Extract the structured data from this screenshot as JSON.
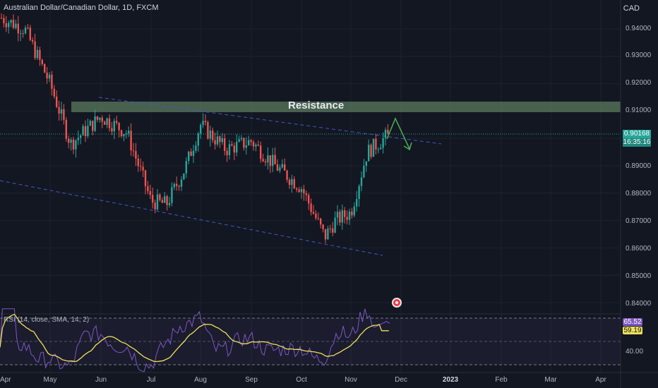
{
  "header": {
    "symbol_title": "Australian Dollar/Canadian Dollar, 1D, FXCM",
    "currency": "CAD"
  },
  "price_axis": {
    "ticks": [
      "0.94000",
      "0.93000",
      "0.92000",
      "0.91000",
      "0.89000",
      "0.88000",
      "0.87000",
      "0.86000",
      "0.85000",
      "0.84000"
    ]
  },
  "price_tag": {
    "price": "0.90168",
    "countdown": "16:35:16"
  },
  "rsi": {
    "title": "RSI (14, close, SMA, 14, 2)",
    "value": "65.52",
    "sma_value": "59.19",
    "tick": "40.00"
  },
  "time_axis": {
    "labels": [
      "Apr",
      "May",
      "Jun",
      "Jul",
      "Aug",
      "Sep",
      "Oct",
      "Nov",
      "Dec",
      "2023",
      "Feb",
      "Mar",
      "Apr"
    ]
  },
  "annotations": {
    "resistance_label": "Resistance"
  },
  "colors": {
    "background": "#131722",
    "up": "#26a69a",
    "down": "#ef5350",
    "resistance_zone": "#5b7a5e",
    "trendline": "#4357c8",
    "arrow": "#4caf50",
    "rsi_line": "#7e57c2",
    "rsi_sma": "#f0e05a",
    "price_tag": "#26a69a"
  },
  "chart_data": {
    "type": "candlestick",
    "title": "Australian Dollar/Canadian Dollar, 1D, FXCM",
    "ylim": [
      0.835,
      0.9475
    ],
    "anchors": [
      {
        "x": "Apr",
        "price": 0.944
      },
      {
        "x": "Apr-mid",
        "price": 0.94
      },
      {
        "x": "May",
        "price": 0.92
      },
      {
        "x": "May-mid",
        "price": 0.898
      },
      {
        "x": "Jun",
        "price": 0.908
      },
      {
        "x": "Jun-mid",
        "price": 0.902
      },
      {
        "x": "Jul",
        "price": 0.877
      },
      {
        "x": "Jul-mid",
        "price": 0.876
      },
      {
        "x": "Jul-late",
        "price": 0.889
      },
      {
        "x": "Aug",
        "price": 0.905
      },
      {
        "x": "Aug-mid",
        "price": 0.896
      },
      {
        "x": "Sep",
        "price": 0.899
      },
      {
        "x": "Sep-mid",
        "price": 0.89
      },
      {
        "x": "Oct",
        "price": 0.882
      },
      {
        "x": "Oct-mid",
        "price": 0.864
      },
      {
        "x": "Oct-late",
        "price": 0.87
      },
      {
        "x": "Nov",
        "price": 0.873
      },
      {
        "x": "Nov-mid",
        "price": 0.895
      },
      {
        "x": "Nov-late",
        "price": 0.9017
      }
    ],
    "last_price": 0.90168,
    "resistance_zone": [
      0.9095,
      0.9125
    ],
    "rsi_last": 65.52,
    "rsi_sma_last": 59.19
  }
}
